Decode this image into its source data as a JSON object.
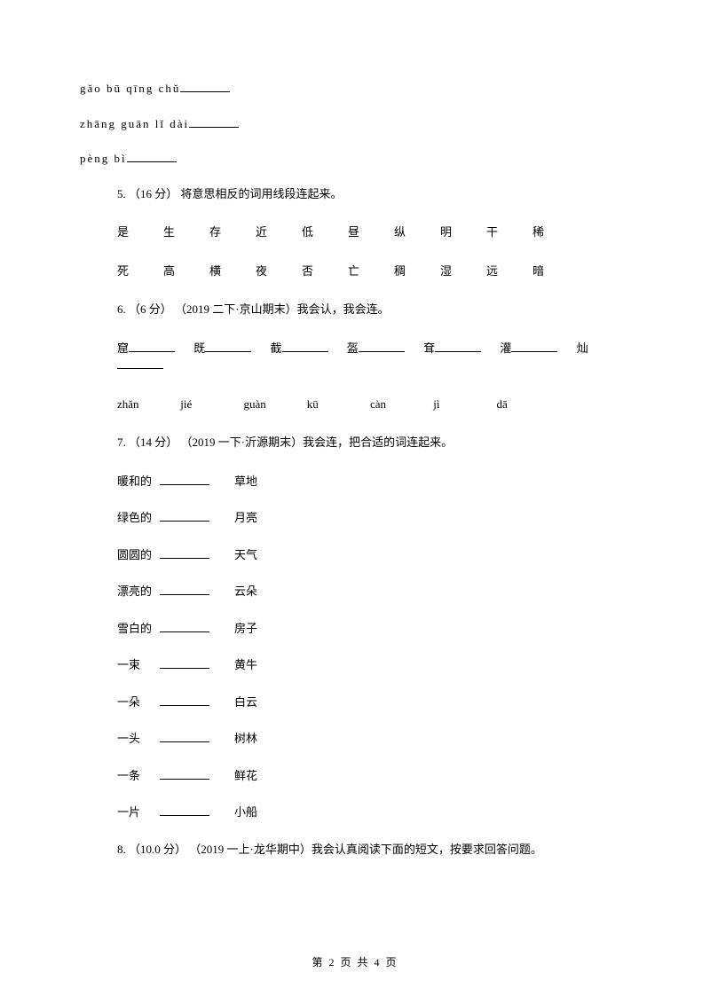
{
  "pinyin_lines": [
    {
      "text": "gǎo  bū  qīng  chǔ",
      "has_blank": true
    },
    {
      "text": "zhāng  guān  lǐ  dài",
      "has_blank": true
    },
    {
      "text": "pèng  bì",
      "has_blank": true
    }
  ],
  "q5": {
    "heading": "5. （16 分）  将意思相反的词用线段连起来。",
    "row1": [
      "是",
      "生",
      "存",
      "近",
      "低",
      "昼",
      "纵",
      "明",
      "干",
      "稀"
    ],
    "row2": [
      "死",
      "高",
      "横",
      "夜",
      "否",
      "亡",
      "稠",
      "湿",
      "远",
      "暗"
    ]
  },
  "q6": {
    "heading": "6. （6 分） （2019 二下·京山期末）我会认，我会连。",
    "chars": [
      "窟",
      "既",
      "截",
      "盔",
      "耷",
      "灌",
      "灿"
    ],
    "pinyin": [
      "zhǎn",
      "jié",
      "guàn",
      "kū",
      "càn",
      "jì",
      "dā"
    ]
  },
  "q7": {
    "heading": "7. （14 分） （2019 一下·沂源期末）我会连，把合适的词连起来。",
    "pairs": [
      {
        "l": "暖和的",
        "r": "草地"
      },
      {
        "l": "绿色的",
        "r": "月亮"
      },
      {
        "l": "圆圆的",
        "r": "天气"
      },
      {
        "l": "漂亮的",
        "r": "云朵"
      },
      {
        "l": "雪白的",
        "r": "房子"
      },
      {
        "l": "一束",
        "r": "黄牛"
      },
      {
        "l": "一朵",
        "r": "白云"
      },
      {
        "l": "一头",
        "r": "树林"
      },
      {
        "l": "一条",
        "r": "鲜花"
      },
      {
        "l": "一片",
        "r": "小船"
      }
    ]
  },
  "q8": {
    "heading": "8. （10.0 分） （2019 一上·龙华期中）我会认真阅读下面的短文，按要求回答问题。"
  },
  "footer": "第 2 页 共 4 页"
}
